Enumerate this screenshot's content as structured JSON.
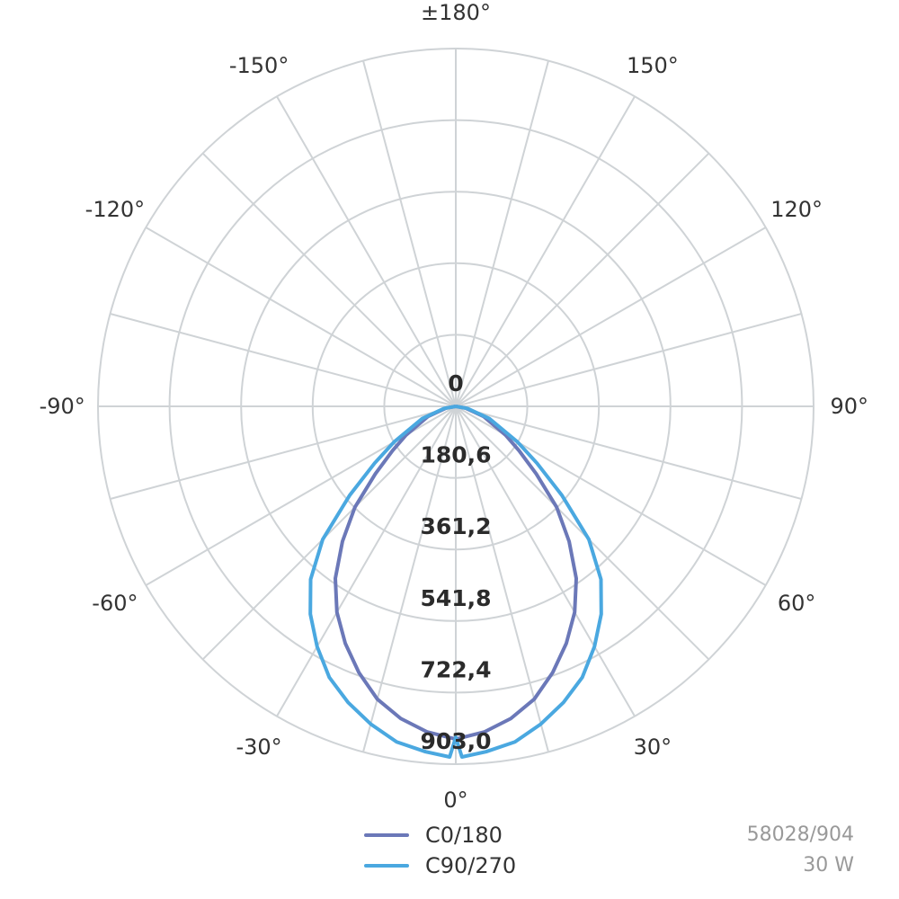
{
  "chart_data": {
    "type": "polar",
    "angle_labels": [
      "0°",
      "30°",
      "60°",
      "90°",
      "120°",
      "150°",
      "±180°",
      "-150°",
      "-120°",
      "-90°",
      "-60°",
      "-30°"
    ],
    "radial_tick_labels": [
      "0",
      "180,6",
      "361,2",
      "541,8",
      "722,4",
      "903,0"
    ],
    "radial_ticks": [
      0,
      180.6,
      361.2,
      541.8,
      722.4,
      903.0
    ],
    "r_max": 903.0,
    "angle_step": 15,
    "grid": true,
    "legend_position": "bottom-center",
    "series": [
      {
        "name": "C0/180",
        "color": "#6b78b8",
        "angles": [
          -90,
          -80,
          -70,
          -60,
          -55,
          -50,
          -45,
          -40,
          -35,
          -30,
          -25,
          -20,
          -15,
          -10,
          -5,
          0,
          5,
          10,
          15,
          20,
          25,
          30,
          35,
          40,
          45,
          50,
          55,
          60,
          70,
          80,
          90
        ],
        "values": [
          0,
          25,
          75,
          145,
          195,
          265,
          360,
          445,
          530,
          600,
          660,
          715,
          765,
          800,
          825,
          840,
          825,
          800,
          765,
          715,
          660,
          600,
          530,
          445,
          360,
          265,
          195,
          145,
          75,
          25,
          0
        ]
      },
      {
        "name": "C90/270",
        "color": "#4aa8e0",
        "angles": [
          -90,
          -80,
          -70,
          -60,
          -55,
          -50,
          -45,
          -40,
          -35,
          -30,
          -25,
          -20,
          -15,
          -10,
          -5,
          -1,
          0,
          1,
          5,
          10,
          15,
          20,
          25,
          30,
          35,
          40,
          45,
          50,
          55,
          60,
          70,
          80,
          90
        ],
        "values": [
          0,
          30,
          90,
          180,
          250,
          350,
          475,
          570,
          640,
          700,
          755,
          795,
          830,
          860,
          875,
          885,
          835,
          885,
          875,
          860,
          830,
          795,
          755,
          700,
          640,
          570,
          475,
          350,
          250,
          180,
          90,
          30,
          0
        ]
      }
    ]
  },
  "legend": {
    "items": [
      {
        "label": "C0/180",
        "color": "#6b78b8"
      },
      {
        "label": "C90/270",
        "color": "#4aa8e0"
      }
    ]
  },
  "product": {
    "code": "58028/904",
    "power": "30 W"
  }
}
